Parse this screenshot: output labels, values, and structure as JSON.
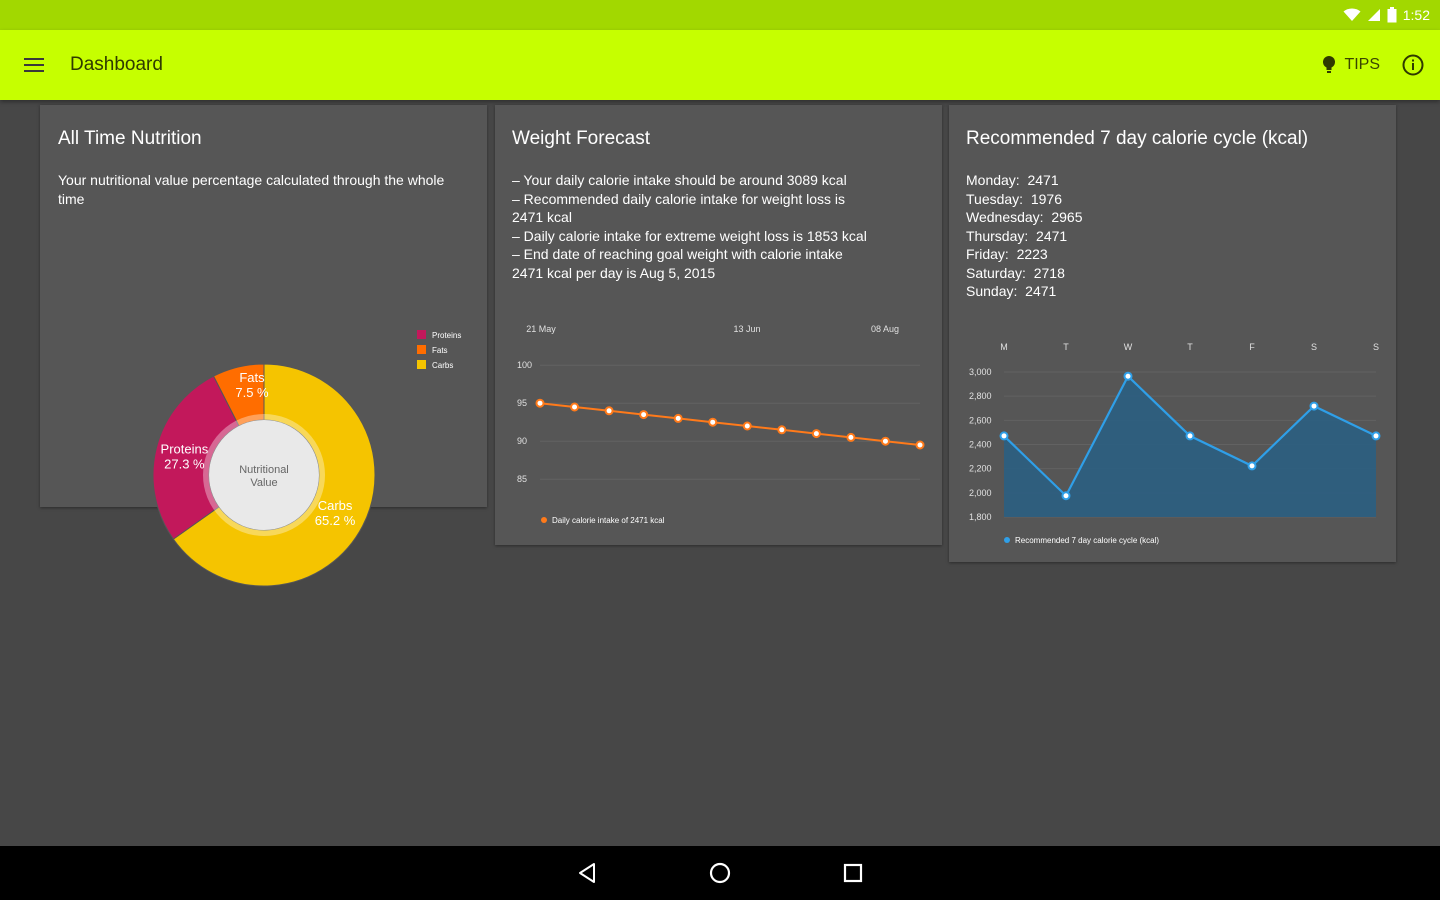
{
  "status_bar": {
    "time": "1:52",
    "icons": [
      "wifi-icon",
      "signal-icon",
      "battery-icon"
    ]
  },
  "app_bar": {
    "title": "Dashboard",
    "tips_label": "TIPS",
    "icons": [
      "menu-icon",
      "lightbulb-icon",
      "info-icon"
    ],
    "color": "#c6ff00"
  },
  "nutrition_card": {
    "title": "All Time Nutrition",
    "description": "Your nutritional value percentage calculated through the whole time",
    "center_label_line1": "Nutritional",
    "center_label_line2": "Value"
  },
  "weight_card": {
    "title": "Weight Forecast",
    "lines": [
      "– Your daily calorie intake should be around 3089 kcal",
      "– Recommended daily calorie intake for weight loss is",
      "2471 kcal",
      "– Daily calorie intake for extreme weight loss is 1853 kcal",
      "– End date of reaching goal weight with calorie intake",
      "2471 kcal per day is Aug 5, 2015"
    ]
  },
  "cycle_card": {
    "title": "Recommended 7 day calorie cycle (kcal)",
    "days": [
      {
        "label": "Monday:",
        "value": "2471"
      },
      {
        "label": "Tuesday:",
        "value": "1976"
      },
      {
        "label": "Wednesday:",
        "value": "2965"
      },
      {
        "label": "Thursday:",
        "value": "2471"
      },
      {
        "label": "Friday:",
        "value": "2223"
      },
      {
        "label": "Saturday:",
        "value": "2718"
      },
      {
        "label": "Sunday:",
        "value": "2471"
      }
    ]
  },
  "chart_data": [
    {
      "type": "pie",
      "variant": "donut",
      "slices": [
        {
          "name": "Carbs",
          "value": 65.2,
          "label": "Carbs",
          "pct": "65.2 %",
          "color": "#f5c400"
        },
        {
          "name": "Proteins",
          "value": 27.3,
          "label": "Proteins",
          "pct": "27.3 %",
          "color": "#c2185b"
        },
        {
          "name": "Fats",
          "value": 7.5,
          "label": "Fats",
          "pct": "7.5 %",
          "color": "#ff6d00"
        }
      ],
      "legend": [
        "Proteins",
        "Fats",
        "Carbs"
      ],
      "legend_colors": [
        "#c2185b",
        "#ff6d00",
        "#f5c400"
      ],
      "legend_position": "top-right"
    },
    {
      "type": "line",
      "x_tick_labels": [
        "21 May",
        "13 Jun",
        "08 Aug"
      ],
      "y_ticks": [
        100,
        95,
        90,
        85
      ],
      "ylim": [
        82,
        102
      ],
      "series": [
        {
          "name": "Daily calorie intake of 2471 kcal",
          "color": "#ff7a1a",
          "values": [
            95.0,
            94.5,
            94.0,
            93.5,
            93.0,
            92.5,
            92.0,
            91.5,
            91.0,
            90.5,
            90.0,
            89.5
          ]
        }
      ],
      "grid": true,
      "legend_position": "bottom-left"
    },
    {
      "type": "area",
      "categories": [
        "M",
        "T",
        "W",
        "T",
        "F",
        "S",
        "S"
      ],
      "y_ticks": [
        "3,000",
        "2,800",
        "2,600",
        "2,400",
        "2,200",
        "2,000",
        "1,800"
      ],
      "ylim": [
        1800,
        3000
      ],
      "series": [
        {
          "name": "Recommended 7 day calorie cycle (kcal)",
          "color": "#2f9fe8",
          "fill": "#2d5f80",
          "values": [
            2471,
            1976,
            2965,
            2471,
            2223,
            2718,
            2471
          ]
        }
      ],
      "grid": true,
      "legend_position": "bottom-left"
    }
  ]
}
